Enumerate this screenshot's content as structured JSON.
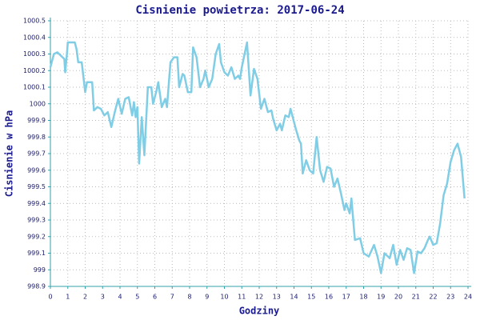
{
  "chart_data": {
    "type": "line",
    "title": "Cisnienie powietrza: 2017-06-24",
    "x_label": "Godziny",
    "y_label": "Cisnienie w hPa",
    "grid": true,
    "xlim": [
      0,
      24
    ],
    "xticks": [
      0,
      1,
      2,
      3,
      4,
      5,
      6,
      7,
      8,
      9,
      10,
      11,
      12,
      13,
      14,
      15,
      16,
      17,
      18,
      19,
      20,
      21,
      22,
      23,
      24
    ],
    "ylim": [
      998.9,
      1000.5
    ],
    "yticks": [
      998.9,
      999,
      999.1,
      999.2,
      999.3,
      999.4,
      999.5,
      999.6,
      999.7,
      999.8,
      999.9,
      1000,
      1000.1,
      1000.2,
      1000.3,
      1000.4,
      1000.5
    ],
    "series": [
      {
        "name": "Cisnienie",
        "color": "#80cde6",
        "x": [
          0,
          0.2,
          0.4,
          0.7,
          0.8,
          0.85,
          0.95,
          1.0,
          1.4,
          1.5,
          1.6,
          1.8,
          2.0,
          2.1,
          2.4,
          2.5,
          2.7,
          2.9,
          3.1,
          3.3,
          3.5,
          3.7,
          3.9,
          4.1,
          4.3,
          4.5,
          4.7,
          4.8,
          4.9,
          5.0,
          5.1,
          5.25,
          5.4,
          5.6,
          5.8,
          5.9,
          6.1,
          6.2,
          6.4,
          6.6,
          6.7,
          6.9,
          7.1,
          7.3,
          7.4,
          7.6,
          7.7,
          7.9,
          8.1,
          8.2,
          8.4,
          8.6,
          8.8,
          8.9,
          9.1,
          9.3,
          9.5,
          9.7,
          9.8,
          10.0,
          10.2,
          10.4,
          10.6,
          10.8,
          10.9,
          11.0,
          11.3,
          11.5,
          11.7,
          11.9,
          12.1,
          12.3,
          12.5,
          12.7,
          12.8,
          13.0,
          13.2,
          13.3,
          13.5,
          13.7,
          13.8,
          14.1,
          14.3,
          14.4,
          14.5,
          14.7,
          14.9,
          15.1,
          15.3,
          15.5,
          15.7,
          15.9,
          16.1,
          16.3,
          16.5,
          16.7,
          16.9,
          17.0,
          17.2,
          17.3,
          17.5,
          17.8,
          18.0,
          18.3,
          18.6,
          18.8,
          19.0,
          19.2,
          19.5,
          19.7,
          19.9,
          20.1,
          20.3,
          20.5,
          20.7,
          20.9,
          21.1,
          21.3,
          21.5,
          21.7,
          21.8,
          22.0,
          22.2,
          22.4,
          22.6,
          22.8,
          23.0,
          23.2,
          23.4,
          23.6,
          23.8
        ],
        "values": [
          1000.22,
          1000.3,
          1000.31,
          1000.28,
          1000.27,
          1000.19,
          1000.3,
          1000.37,
          1000.37,
          1000.33,
          1000.25,
          1000.25,
          1000.07,
          1000.13,
          1000.13,
          999.96,
          999.98,
          999.97,
          999.93,
          999.95,
          999.86,
          999.95,
          1000.03,
          999.94,
          1000.03,
          1000.04,
          999.93,
          1000.01,
          999.92,
          999.98,
          999.64,
          999.92,
          999.69,
          1000.1,
          1000.1,
          1000.0,
          1000.08,
          1000.13,
          999.98,
          1000.03,
          999.98,
          1000.25,
          1000.28,
          1000.28,
          1000.1,
          1000.18,
          1000.17,
          1000.07,
          1000.07,
          1000.34,
          1000.28,
          1000.1,
          1000.15,
          1000.2,
          1000.1,
          1000.15,
          1000.3,
          1000.36,
          1000.25,
          1000.19,
          1000.17,
          1000.22,
          1000.15,
          1000.17,
          1000.15,
          1000.22,
          1000.37,
          1000.05,
          1000.21,
          1000.15,
          999.97,
          1000.03,
          999.95,
          999.96,
          999.91,
          999.84,
          999.88,
          999.84,
          999.93,
          999.92,
          999.97,
          999.85,
          999.78,
          999.76,
          999.58,
          999.66,
          999.6,
          999.58,
          999.8,
          999.6,
          999.53,
          999.62,
          999.61,
          999.5,
          999.55,
          999.46,
          999.36,
          999.4,
          999.34,
          999.43,
          999.18,
          999.19,
          999.1,
          999.08,
          999.15,
          999.08,
          998.98,
          999.1,
          999.07,
          999.15,
          999.03,
          999.12,
          999.06,
          999.13,
          999.12,
          998.98,
          999.11,
          999.1,
          999.13,
          999.18,
          999.2,
          999.15,
          999.16,
          999.28,
          999.45,
          999.52,
          999.65,
          999.72,
          999.76,
          999.68,
          999.43
        ]
      }
    ]
  }
}
